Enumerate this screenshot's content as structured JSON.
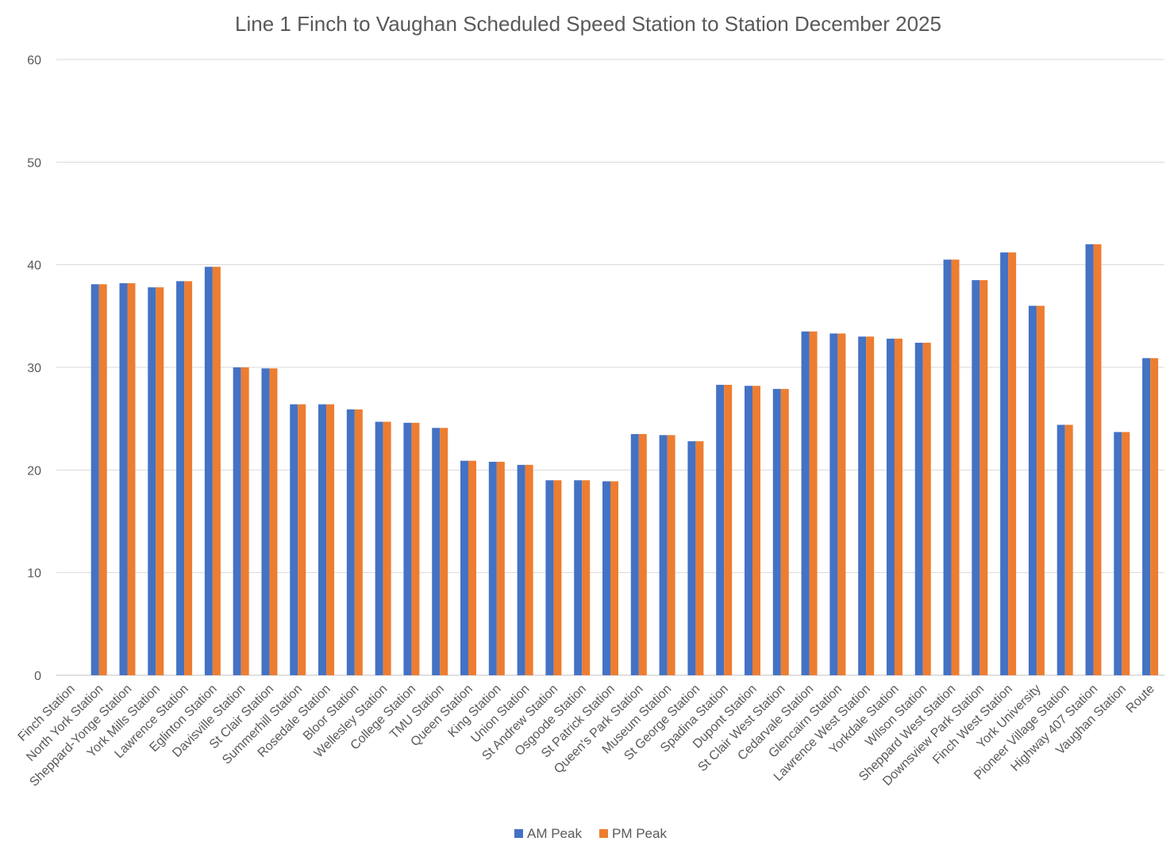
{
  "chart_data": {
    "type": "bar",
    "title": "Line 1 Finch to Vaughan Scheduled Speed Station to Station December 2025",
    "xlabel": "",
    "ylabel": "",
    "ylim": [
      0,
      60
    ],
    "yticks": [
      0,
      10,
      20,
      30,
      40,
      50,
      60
    ],
    "grid": true,
    "legend_position": "bottom",
    "categories": [
      "Finch Station",
      "North York Station",
      "Sheppard-Yonge Station",
      "York Mills Station",
      "Lawrence Station",
      "Eglinton Station",
      "Davisville Station",
      "St Clair Station",
      "Summerhill Station",
      "Rosedale Station",
      "Bloor Station",
      "Wellesley Station",
      "College Station",
      "TMU Station",
      "Queen Station",
      "King Station",
      "Union Station",
      "St Andrew Station",
      "Osgoode Station",
      "St Patrick Station",
      "Queen's Park Station",
      "Museum Station",
      "St George Station",
      "Spadina Station",
      "Dupont Station",
      "St Clair West Station",
      "Cedarvale Station",
      "Glencairn Station",
      "Lawrence West Station",
      "Yorkdale Station",
      "Wilson Station",
      "Sheppard West Station",
      "Downsview Park Station",
      "Finch West Station",
      "York University",
      "Pioneer Village Station",
      "Highway 407 Station",
      "Vaughan Station",
      "Route"
    ],
    "series": [
      {
        "name": "AM Peak",
        "color": "#4472C4",
        "values": [
          null,
          38.1,
          38.2,
          37.8,
          38.4,
          39.8,
          30.0,
          29.9,
          26.4,
          26.4,
          25.9,
          24.7,
          24.6,
          24.1,
          20.9,
          20.8,
          20.5,
          19.0,
          19.0,
          18.9,
          23.5,
          23.4,
          22.8,
          28.3,
          28.2,
          27.9,
          33.5,
          33.3,
          33.0,
          32.8,
          32.4,
          40.5,
          38.5,
          41.2,
          36.0,
          24.4,
          42.0,
          23.7,
          30.9
        ]
      },
      {
        "name": "PM Peak",
        "color": "#ED7D31",
        "values": [
          null,
          38.1,
          38.2,
          37.8,
          38.4,
          39.8,
          30.0,
          29.9,
          26.4,
          26.4,
          25.9,
          24.7,
          24.6,
          24.1,
          20.9,
          20.8,
          20.5,
          19.0,
          19.0,
          18.9,
          23.5,
          23.4,
          22.8,
          28.3,
          28.2,
          27.9,
          33.5,
          33.3,
          33.0,
          32.8,
          32.4,
          40.5,
          38.5,
          41.2,
          36.0,
          24.4,
          42.0,
          23.7,
          30.9
        ]
      }
    ]
  }
}
